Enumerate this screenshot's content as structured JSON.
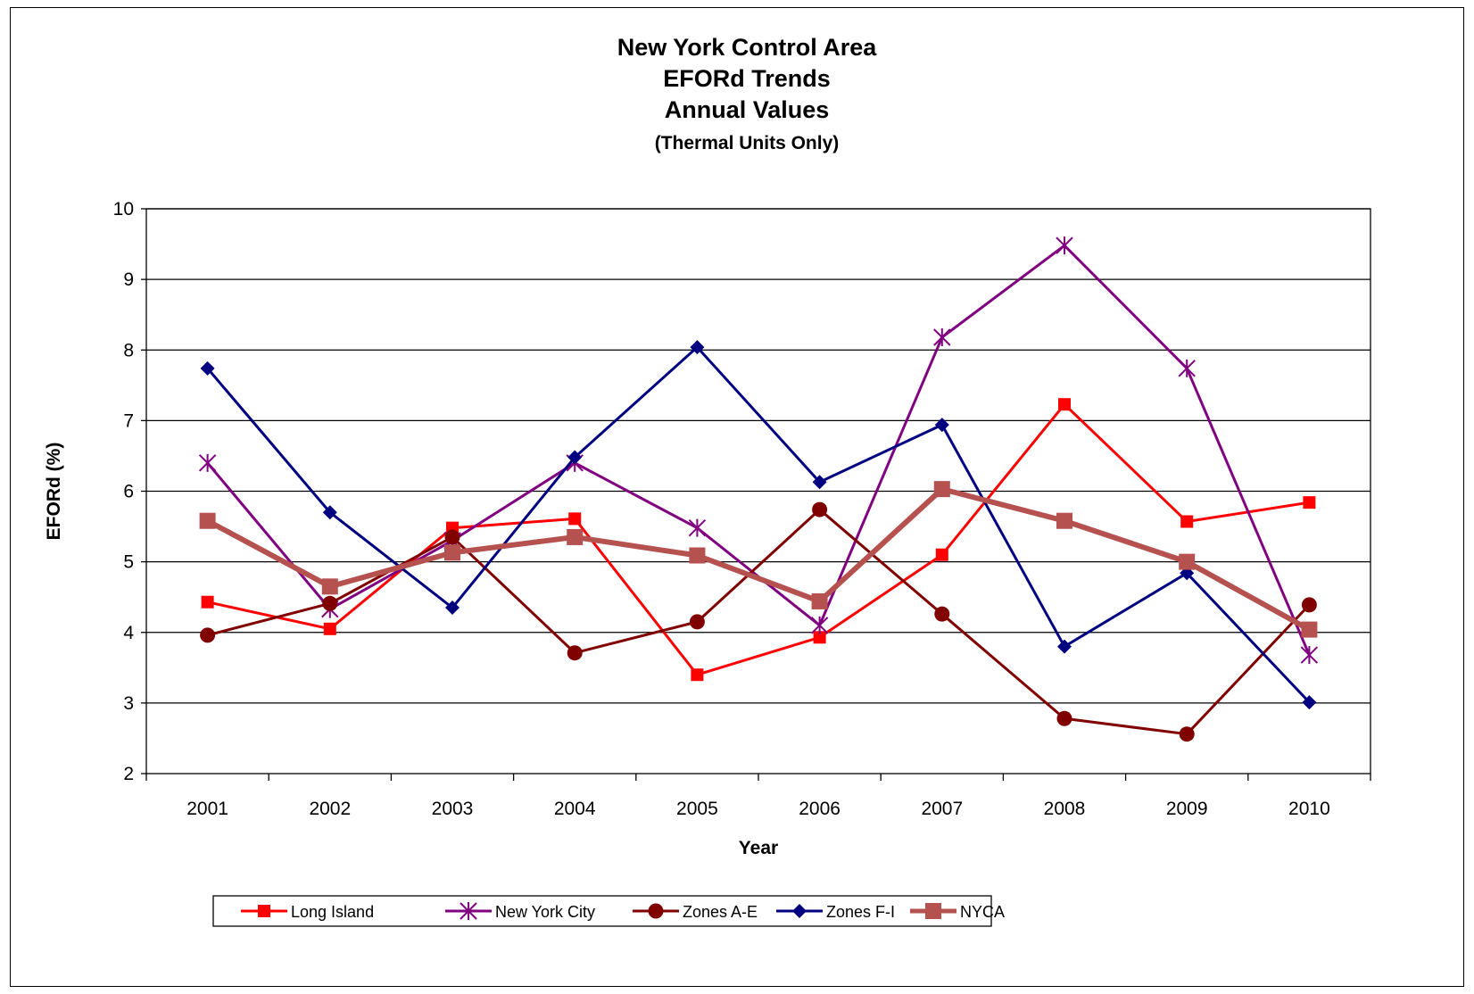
{
  "chart_data": {
    "type": "line",
    "title": [
      "New York Control Area",
      "EFORd Trends",
      "Annual Values"
    ],
    "subtitle": "(Thermal Units Only)",
    "xlabel": "Year",
    "ylabel": "EFORd (%)",
    "ylim": [
      2,
      10
    ],
    "yticks": [
      "2",
      "3",
      "4",
      "5",
      "6",
      "7",
      "8",
      "9",
      "10"
    ],
    "categories": [
      "2001",
      "2002",
      "2003",
      "2004",
      "2005",
      "2006",
      "2007",
      "2008",
      "2009",
      "2010"
    ],
    "grid": "horizontal",
    "legend_position": "bottom",
    "series": [
      {
        "name": "Long Island",
        "color": "#ff0000",
        "marker": "square-small",
        "line_width": 3,
        "values": [
          4.43,
          4.05,
          5.48,
          5.61,
          3.4,
          3.93,
          5.1,
          7.23,
          5.57,
          5.84
        ]
      },
      {
        "name": "New York City",
        "color": "#800080",
        "marker": "star",
        "line_width": 3,
        "values": [
          6.4,
          4.33,
          5.3,
          6.4,
          5.48,
          4.1,
          8.18,
          9.48,
          7.74,
          3.68
        ]
      },
      {
        "name": "Zones A-E",
        "color": "#800000",
        "marker": "circle",
        "line_width": 3,
        "values": [
          3.96,
          4.41,
          5.35,
          3.71,
          4.15,
          5.74,
          4.26,
          2.78,
          2.56,
          4.39
        ]
      },
      {
        "name": "Zones F-I",
        "color": "#000080",
        "marker": "diamond",
        "line_width": 3,
        "values": [
          7.74,
          5.7,
          4.35,
          6.48,
          8.04,
          6.13,
          6.94,
          3.8,
          4.84,
          3.01
        ]
      },
      {
        "name": "NYCA",
        "color": "#b5514f",
        "marker": "square",
        "line_width": 6,
        "values": [
          5.58,
          4.65,
          5.13,
          5.35,
          5.09,
          4.44,
          6.03,
          5.58,
          5.0,
          4.04
        ]
      }
    ]
  }
}
